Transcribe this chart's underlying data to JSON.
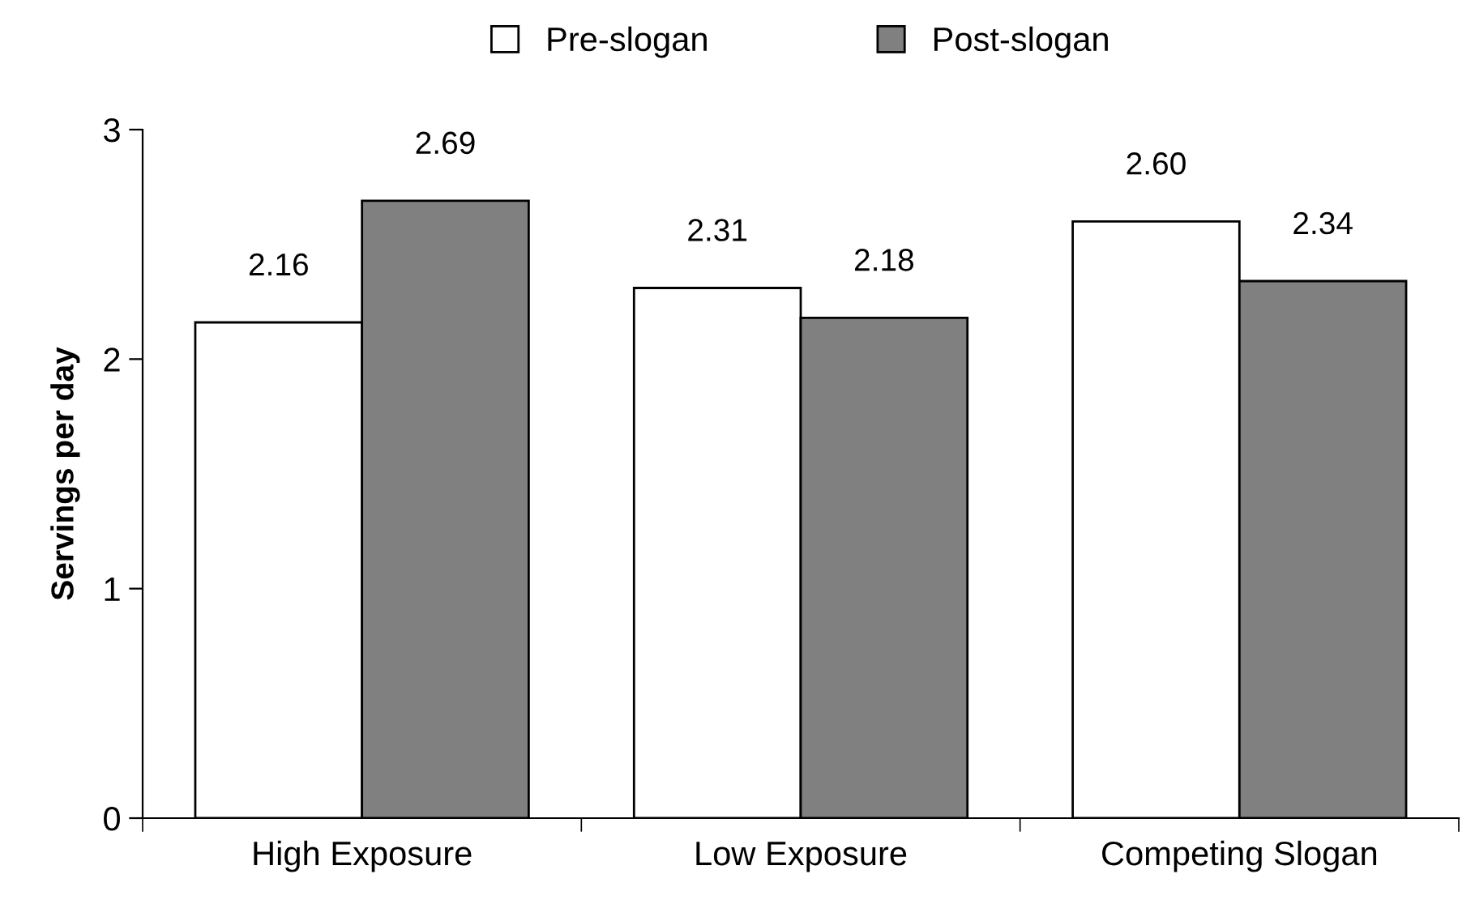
{
  "chart_data": {
    "type": "bar",
    "ylabel": "Servings per day",
    "categories": [
      "High Exposure",
      "Low Exposure",
      "Competing Slogan"
    ],
    "series": [
      {
        "name": "Pre-slogan",
        "color": "#ffffff",
        "values": [
          2.16,
          2.31,
          2.6
        ],
        "value_labels": [
          "2.16",
          "2.31",
          "2.60"
        ]
      },
      {
        "name": "Post-slogan",
        "color": "#808080",
        "values": [
          2.69,
          2.18,
          2.34
        ],
        "value_labels": [
          "2.69",
          "2.18",
          "2.34"
        ]
      }
    ],
    "ylim": [
      0,
      3
    ],
    "yticks": [
      0,
      1,
      2,
      3
    ],
    "grid": false,
    "legend": "top"
  }
}
